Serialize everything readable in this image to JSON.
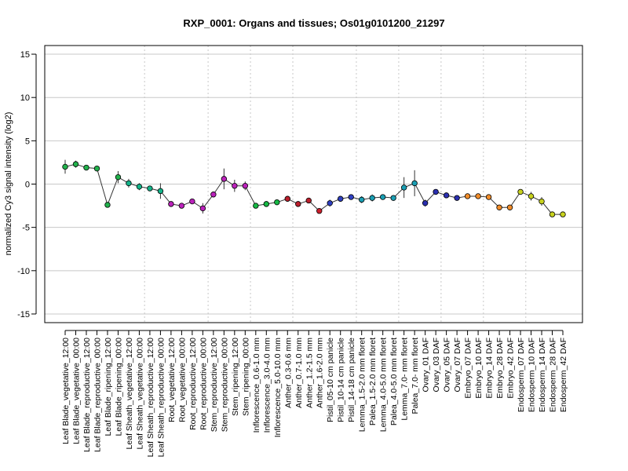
{
  "chart_data": {
    "type": "line",
    "title": "RXP_0001: Organs and tissues; Os01g0101200_21297",
    "xlabel": "",
    "ylabel": "normalized Cy3 signal intensity (log2)",
    "ylim": [
      -16,
      16
    ],
    "yticks": [
      -15,
      -10,
      -5,
      0,
      5,
      10,
      15
    ],
    "hgrid_values": [
      -15,
      -10,
      -5,
      0,
      5,
      10,
      15
    ],
    "grid": true,
    "group_boundaries_after_index": [
      7,
      13,
      17,
      21,
      27,
      31,
      35,
      39,
      43
    ],
    "categories": [
      "Leaf Blade_vegetative_12:00",
      "Leaf Blade_vegetative_00:00",
      "Leaf Blade_reproductive_12:00",
      "Leaf Blade_reproductive_00:00",
      "Leaf Blade_ripening_12:00",
      "Leaf Blade_ripening_00:00",
      "Leaf Sheath_vegetative_12:00",
      "Leaf Sheath_vegetative_00:00",
      "Leaf Sheath_reproductive_12:00",
      "Leaf Sheath_reproductive_00:00",
      "Root_vegetative_12:00",
      "Root_vegetative_00:00",
      "Root_reproductive_12:00",
      "Root_reproductive_00:00",
      "Stem_reproductive_12:00",
      "Stem_reproductive_00:00",
      "Stem_ripening_12:00",
      "Stem_ripening_00:00",
      "Inflorescence_0.6-1.0 mm",
      "Inflorescence_3.0-4.0 mm",
      "Inflorescence_5.0-10.0 mm",
      "Anther_0.3-0.6 mm",
      "Anther_0.7-1.0 mm",
      "Anther_1.2-1.5 mm",
      "Anther_1.6-2.0 mm",
      "Pistil_05-10 cm panicle",
      "Pistil_10-14 cm panicle",
      "Pistil_14-18 cm panicle",
      "Lemma_1.5-2.0 mm floret",
      "Palea_1.5-2.0 mm floret",
      "Lemma_4.0-5.0 mm floret",
      "Palea_4.0-5.0 mm floret",
      "Lemma_7.0- mm floret",
      "Palea_7.0- mm floret",
      "Ovary_01 DAF",
      "Ovary_03 DAF",
      "Ovary_05 DAF",
      "Ovary_07 DAF",
      "Embryo_07 DAF",
      "Embryo_10 DAF",
      "Embryo_14 DAF",
      "Embryo_28 DAF",
      "Embryo_42 DAF",
      "Endosperm_07 DAF",
      "Endosperm_10 DAF",
      "Endosperm_14 DAF",
      "Endosperm_28 DAF",
      "Endosperm_42 DAF"
    ],
    "series": [
      {
        "values": [
          2.0,
          2.3,
          1.9,
          1.8,
          -2.4,
          0.8,
          0.1,
          -0.3,
          -0.5,
          -0.8,
          -2.3,
          -2.5,
          -2.0,
          -2.8,
          -1.2,
          0.6,
          -0.2,
          -0.2,
          -2.5,
          -2.3,
          -2.1,
          -1.7,
          -2.3,
          -1.9,
          -3.1,
          -2.2,
          -1.7,
          -1.5,
          -1.8,
          -1.6,
          -1.5,
          -1.6,
          -0.4,
          0.1,
          -2.2,
          -0.9,
          -1.3,
          -1.6,
          -1.4,
          -1.4,
          -1.5,
          -2.7,
          -2.7,
          -0.9,
          -1.4,
          -2.0,
          -3.5,
          -3.5
        ],
        "errors": [
          0.8,
          0.4,
          0.2,
          0.2,
          0.3,
          0.7,
          0.5,
          0.4,
          0.3,
          0.9,
          0.2,
          0.2,
          0.2,
          0.6,
          0.2,
          1.2,
          0.7,
          0.5,
          0.2,
          0.2,
          0.2,
          0.3,
          0.2,
          0.3,
          0.2,
          0.4,
          0.3,
          0.2,
          0.4,
          0.4,
          0.2,
          0.2,
          1.2,
          1.5,
          0.4,
          0.2,
          0.2,
          0.2,
          0.1,
          0.2,
          0.2,
          0.2,
          0.2,
          0.3,
          0.5,
          0.5,
          0.2,
          0.2
        ],
        "colors": [
          "#22b24c",
          "#22b24c",
          "#22b24c",
          "#22b24c",
          "#22b24c",
          "#22b24c",
          "#14b389",
          "#14b389",
          "#14b389",
          "#14b389",
          "#bb22bb",
          "#bb22bb",
          "#bb22bb",
          "#bb22bb",
          "#bb22bb",
          "#bb22bb",
          "#bb22bb",
          "#bb22bb",
          "#16b844",
          "#16b844",
          "#16b844",
          "#bb1f2c",
          "#bb1f2c",
          "#bb1f2c",
          "#cc1f2c",
          "#2e3fc0",
          "#2e3fc0",
          "#2e3fc0",
          "#1a9fb4",
          "#1a9fb4",
          "#1a9fb4",
          "#1a9fb4",
          "#1a9fb4",
          "#1a9fb4",
          "#2a2fb0",
          "#2a2fb0",
          "#2a2fb0",
          "#2a2fb0",
          "#f08c2a",
          "#f08c2a",
          "#f08c2a",
          "#f08c2a",
          "#f08c2a",
          "#c8d21e",
          "#c8d21e",
          "#c8d21e",
          "#c8d21e",
          "#c8d21e"
        ]
      }
    ]
  }
}
